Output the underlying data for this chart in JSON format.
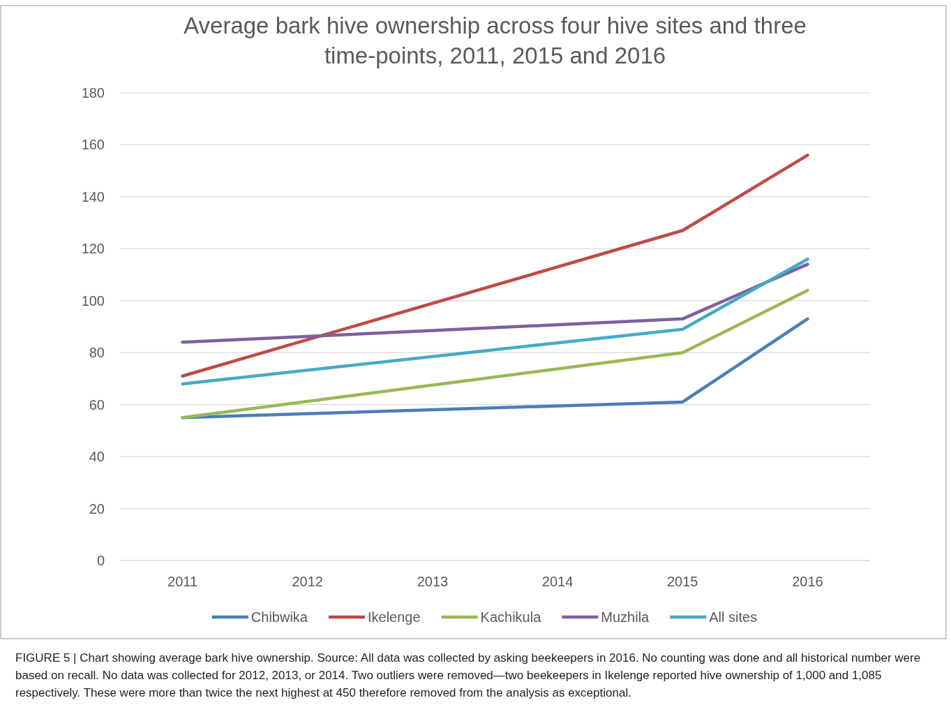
{
  "chart_data": {
    "type": "line",
    "title": "Average bark hive ownership across four hive sites and three time-points, 2011, 2015 and 2016",
    "x": [
      2011,
      2015,
      2016
    ],
    "xlim": [
      2010.5,
      2016.5
    ],
    "xticks": [
      2011,
      2012,
      2013,
      2014,
      2015,
      2016
    ],
    "ylim": [
      0,
      180
    ],
    "yticks": [
      0,
      20,
      40,
      60,
      80,
      100,
      120,
      140,
      160,
      180
    ],
    "grid": "y",
    "legend": "bottom",
    "marker": "none",
    "line_style": "solid",
    "series": [
      {
        "name": "Chibwika",
        "color": "#4a7ebb",
        "values": [
          55,
          61,
          93
        ]
      },
      {
        "name": "Ikelenge",
        "color": "#be4b48",
        "values": [
          71,
          127,
          156
        ]
      },
      {
        "name": "Kachikula",
        "color": "#98b954",
        "values": [
          55,
          80,
          104
        ]
      },
      {
        "name": "Muzhila",
        "color": "#7d5fa0",
        "values": [
          84,
          93,
          114
        ]
      },
      {
        "name": "All sites",
        "color": "#46aac5",
        "values": [
          68,
          89,
          116
        ]
      }
    ],
    "annotations": [
      "FIGURE 5 | Chart showing average bark hive ownership. Source: All data was collected by asking beekeepers in 2016. No counting was done and all historical number were based on recall. No data was collected for 2012, 2013, or 2014. Two outliers were removed—two beekeepers in Ikelenge reported hive ownership of 1,000 and 1,085 respectively. These were more than twice the next highest at 450 therefore removed from the analysis as exceptional."
    ]
  }
}
